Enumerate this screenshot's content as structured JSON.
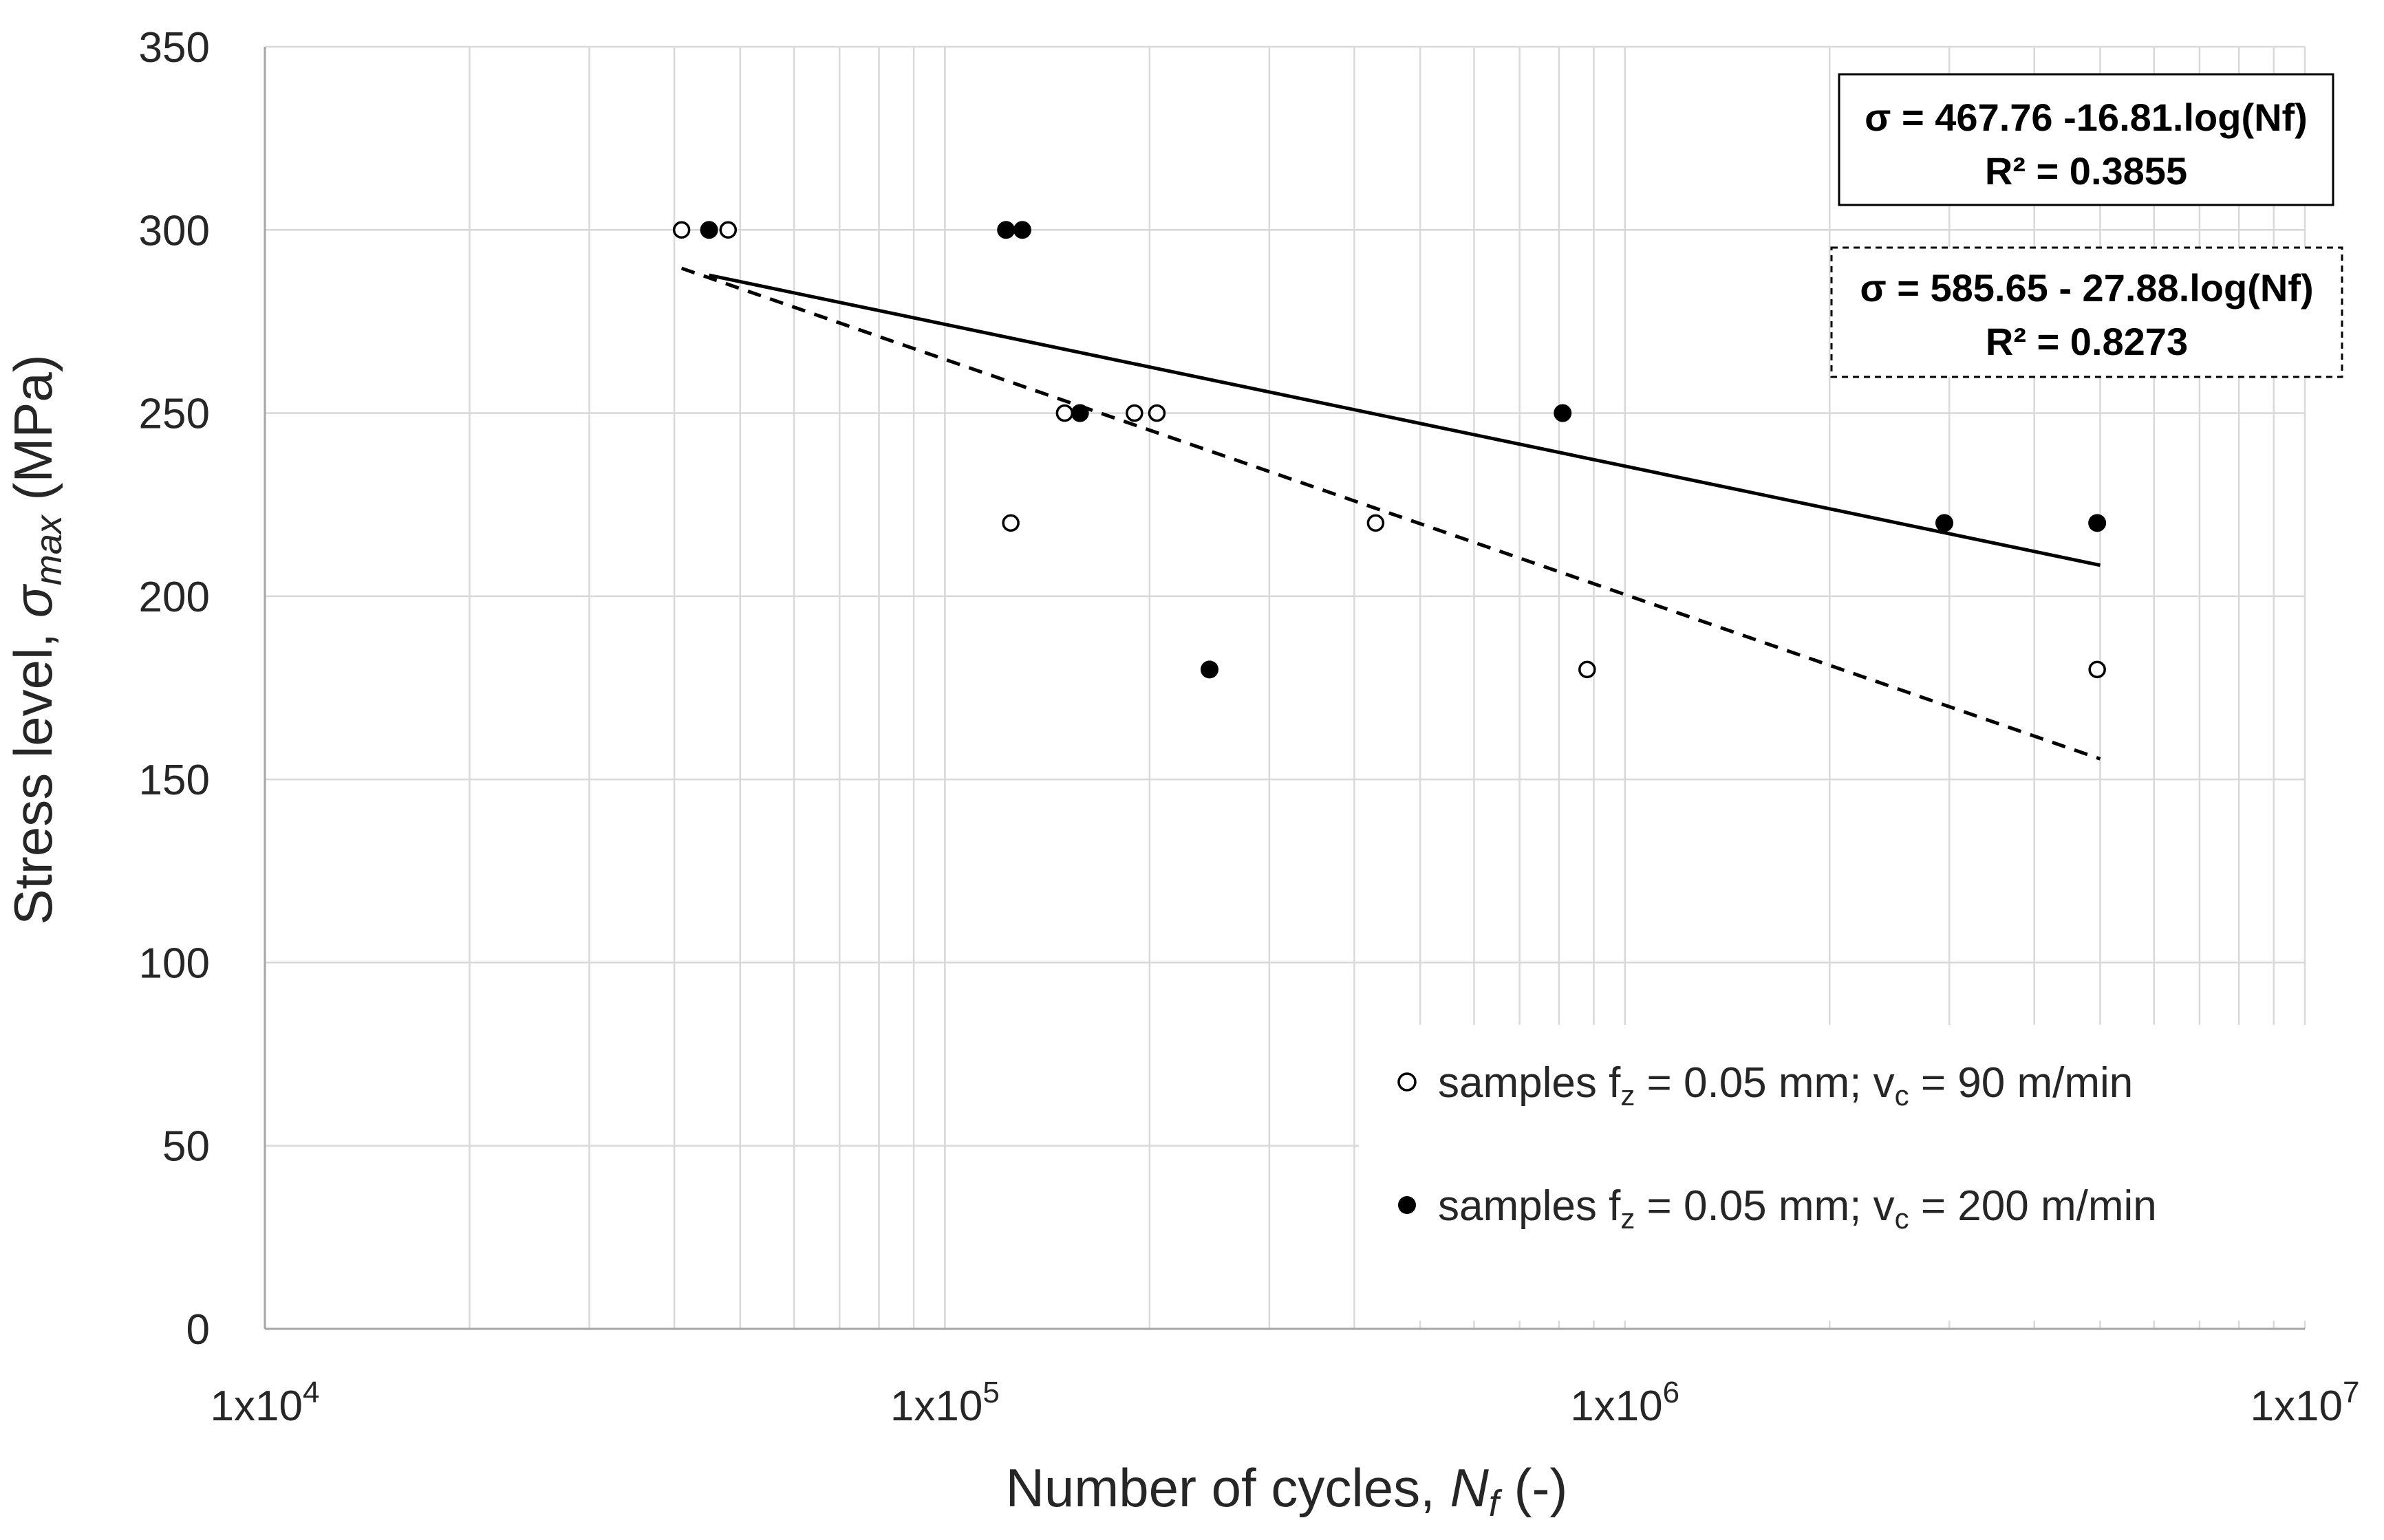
{
  "chart_data": {
    "type": "scatter",
    "title": "",
    "xlabel": {
      "main": "Number of cycles, ",
      "var": "N",
      "sub": "f",
      "suffix": " (-)"
    },
    "ylabel": {
      "main": "Stress level, ",
      "var": "σ",
      "sub": "max",
      "suffix": "  (MPa)"
    },
    "xscale": "log",
    "xlim": [
      10000,
      10000000
    ],
    "ylim": [
      0,
      350
    ],
    "grid": true,
    "y_ticks": [
      0,
      50,
      100,
      150,
      200,
      250,
      300,
      350
    ],
    "y_tick_labels": [
      "0",
      "50",
      "100",
      "150",
      "200",
      "250",
      "300",
      "350"
    ],
    "x_ticks": [
      {
        "value": 10000,
        "base": "1x10",
        "exp": "4"
      },
      {
        "value": 100000,
        "base": "1x10",
        "exp": "5"
      },
      {
        "value": 1000000,
        "base": "1x10",
        "exp": "6"
      },
      {
        "value": 10000000,
        "base": "1x10",
        "exp": "7"
      }
    ],
    "series": [
      {
        "name": "samples f_z = 0.05 mm; v_c = 90 m/min",
        "marker": "open-circle",
        "points": [
          {
            "x": 41000,
            "y": 300
          },
          {
            "x": 48000,
            "y": 300
          },
          {
            "x": 150000,
            "y": 250
          },
          {
            "x": 190000,
            "y": 250
          },
          {
            "x": 205000,
            "y": 250
          },
          {
            "x": 125000,
            "y": 220
          },
          {
            "x": 430000,
            "y": 220
          },
          {
            "x": 880000,
            "y": 180
          },
          {
            "x": 4950000,
            "y": 180
          }
        ],
        "fit": {
          "type": "log-linear",
          "a": 585.65,
          "b": 27.88,
          "x_range": [
            41000,
            5000000
          ],
          "style": "dashed",
          "equation": "σ = 585.65 - 27.88.log(Nf)",
          "r2": "R² = 0.8273"
        }
      },
      {
        "name": "samples f_z = 0.05 mm; v_c = 200 m/min",
        "marker": "filled-circle",
        "points": [
          {
            "x": 45000,
            "y": 300
          },
          {
            "x": 123000,
            "y": 300
          },
          {
            "x": 130000,
            "y": 300
          },
          {
            "x": 158000,
            "y": 250
          },
          {
            "x": 810000,
            "y": 250
          },
          {
            "x": 245000,
            "y": 180
          },
          {
            "x": 2950000,
            "y": 220
          },
          {
            "x": 4950000,
            "y": 220
          }
        ],
        "fit": {
          "type": "log-linear",
          "a": 467.76,
          "b": 16.81,
          "x_range": [
            45000,
            5000000
          ],
          "style": "solid",
          "equation": "σ = 467.76 -16.81.log(Nf)",
          "r2": "R² = 0.3855"
        }
      }
    ],
    "legend": {
      "placement": "bottom-right",
      "entries": [
        {
          "marker": "open-circle",
          "prefix": "samples  f",
          "sub1": "z",
          "mid": " = 0.05 mm;  v",
          "sub2": "c",
          "suffix": " = 90 m/min"
        },
        {
          "marker": "filled-circle",
          "prefix": "samples  f",
          "sub1": "z",
          "mid": " = 0.05 mm;  v",
          "sub2": "c",
          "suffix": " = 200 m/min"
        }
      ]
    },
    "annotations": [
      {
        "id": "eq-solid",
        "line1": "σ = 467.76 -16.81.log(Nf)",
        "line2": "R² = 0.3855",
        "border": "solid",
        "placement": "top-right"
      },
      {
        "id": "eq-dashed",
        "line1": "σ = 585.65 - 27.88.log(Nf)",
        "line2": "R² = 0.8273",
        "border": "dashed",
        "placement": "upper-right"
      }
    ]
  },
  "colors": {
    "grid": "#d9d9d9",
    "axis": "#a6a6a6",
    "text": "#262626",
    "marker": "#000000",
    "background": "#ffffff"
  }
}
